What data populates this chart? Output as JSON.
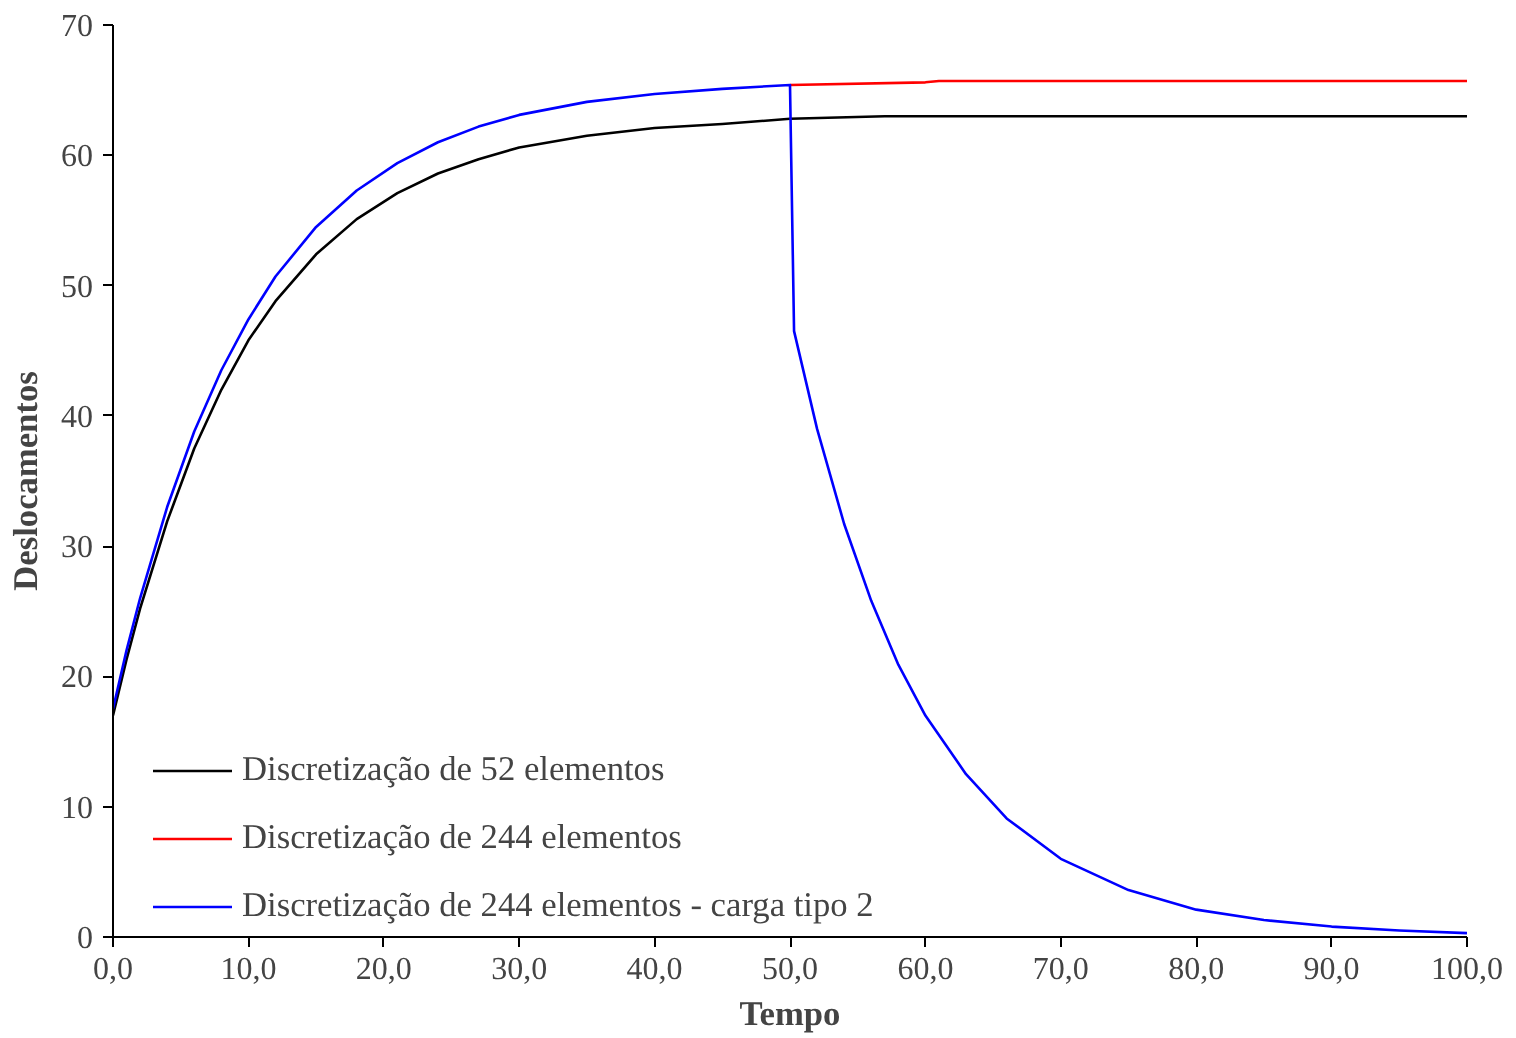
{
  "chart_data": {
    "type": "line",
    "xlabel": "Tempo",
    "ylabel": "Deslocamentos",
    "xlim": [
      0,
      100
    ],
    "ylim": [
      0,
      70
    ],
    "xticks": [
      {
        "value": 0,
        "label": "0,0"
      },
      {
        "value": 10,
        "label": "10,0"
      },
      {
        "value": 20,
        "label": "20,0"
      },
      {
        "value": 30,
        "label": "30,0"
      },
      {
        "value": 40,
        "label": "40,0"
      },
      {
        "value": 50,
        "label": "50,0"
      },
      {
        "value": 60,
        "label": "60,0"
      },
      {
        "value": 70,
        "label": "70,0"
      },
      {
        "value": 80,
        "label": "80,0"
      },
      {
        "value": 90,
        "label": "90,0"
      },
      {
        "value": 100,
        "label": "100,0"
      }
    ],
    "yticks": [
      0,
      10,
      20,
      30,
      40,
      50,
      60,
      70
    ],
    "grid": false,
    "legend": "left",
    "marker": "none",
    "line_style": "solid",
    "series": [
      {
        "name": "Discretização de 52 elementos",
        "color": "#000000",
        "x": [
          0,
          1,
          2,
          4,
          6,
          8,
          10,
          12,
          15,
          18,
          21,
          24,
          27,
          30,
          35,
          40,
          45,
          50,
          57,
          100
        ],
        "values": [
          17,
          21.3,
          25.2,
          31.9,
          37.5,
          42.0,
          45.8,
          48.8,
          52.4,
          55.1,
          57.1,
          58.6,
          59.7,
          60.6,
          61.5,
          62.1,
          62.4,
          62.8,
          63.0,
          63.0
        ]
      },
      {
        "name": "Discretização de 244 elementos",
        "color": "#ff0000",
        "x": [
          50,
          60,
          61,
          100
        ],
        "values": [
          65.4,
          65.6,
          65.7,
          65.7
        ]
      },
      {
        "name": "Discretização de 244 elementos - carga tipo 2",
        "color": "#0000ff",
        "x": [
          0,
          1,
          2,
          4,
          6,
          8,
          10,
          12,
          15,
          18,
          21,
          24,
          27,
          30,
          35,
          40,
          45,
          50,
          50.3,
          52,
          54,
          56,
          58,
          60,
          63,
          66,
          70,
          75,
          80,
          85,
          90,
          95,
          100
        ],
        "values": [
          17.5,
          22.0,
          26.0,
          33.0,
          38.8,
          43.5,
          47.4,
          50.7,
          54.5,
          57.3,
          59.4,
          61.0,
          62.2,
          63.1,
          64.1,
          64.7,
          65.1,
          65.4,
          46.5,
          39.0,
          31.7,
          25.8,
          20.9,
          17.0,
          12.5,
          9.1,
          6.0,
          3.6,
          2.1,
          1.3,
          0.8,
          0.5,
          0.3
        ]
      }
    ]
  }
}
